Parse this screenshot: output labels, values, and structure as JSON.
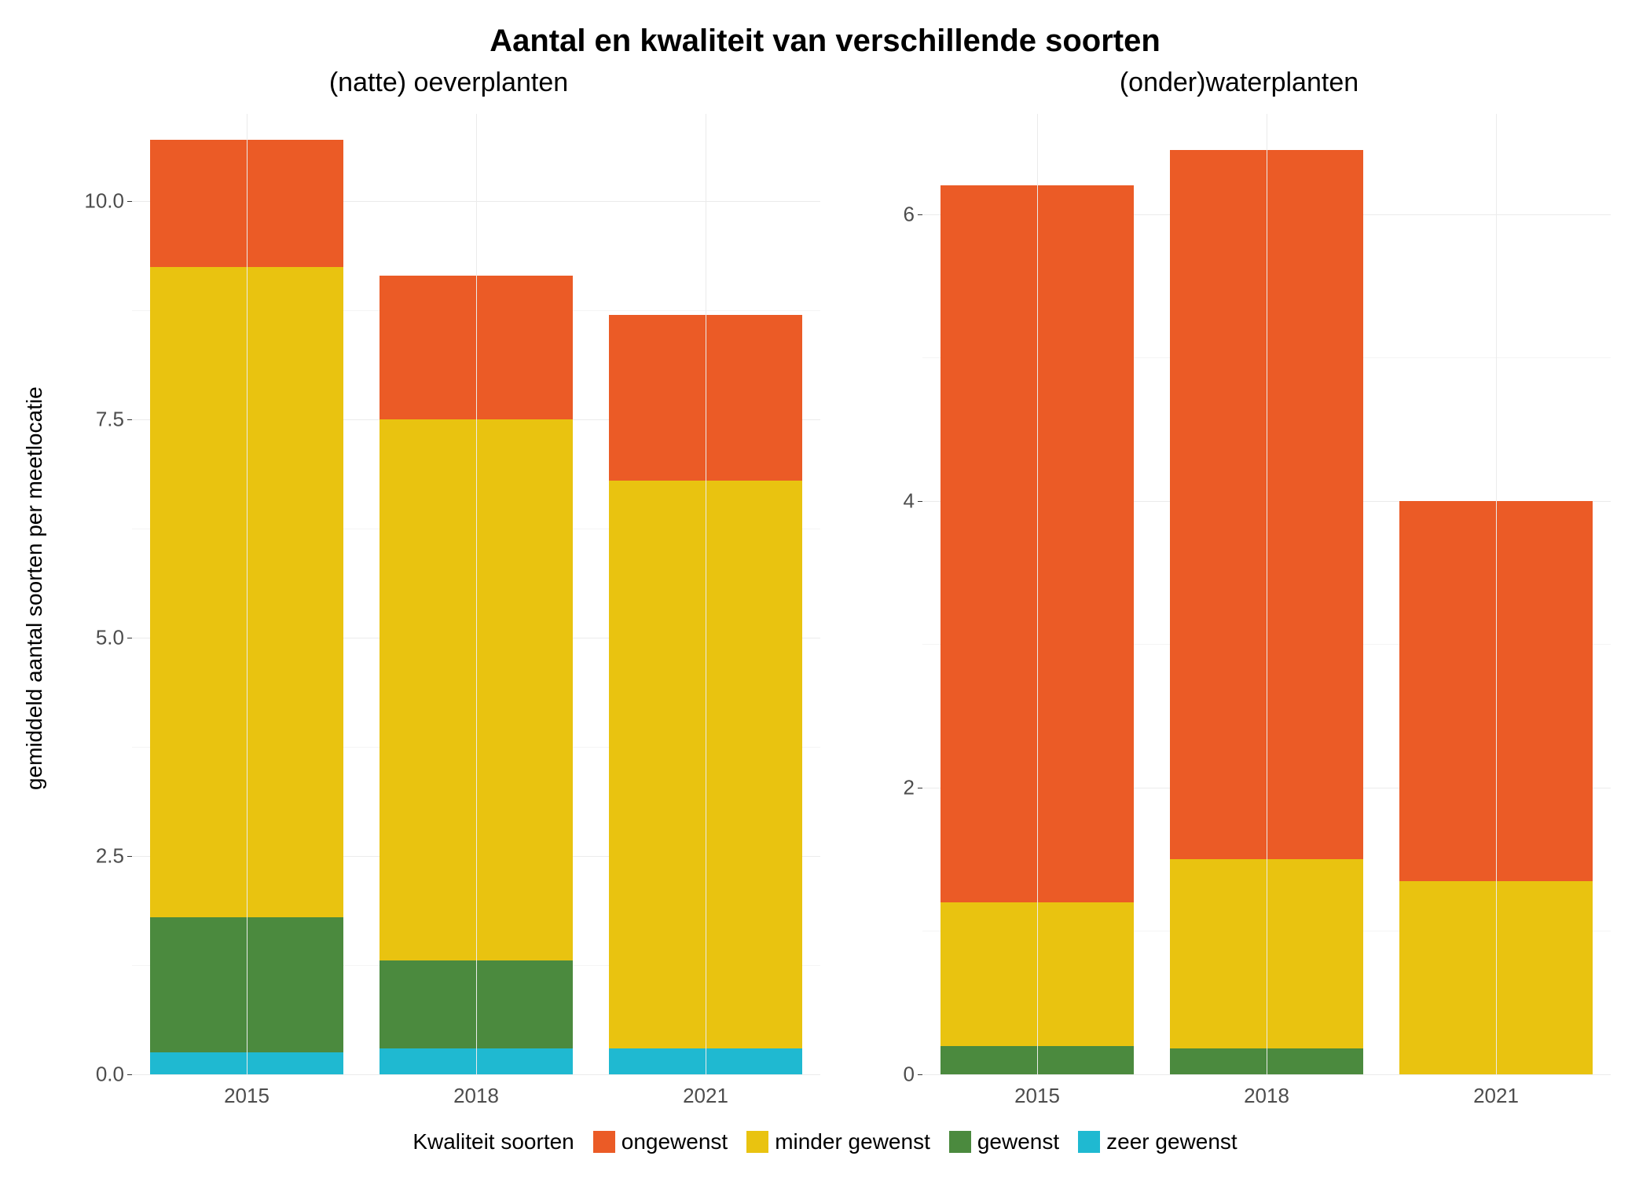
{
  "title": "Aantal en kwaliteit van verschillende soorten",
  "y_axis_label": "gemiddeld aantal soorten per meetlocatie",
  "colors": {
    "ongewenst": "#eb5b26",
    "minder_gewenst": "#e9c310",
    "gewenst": "#4b8a3e",
    "zeer_gewenst": "#1fb9d1",
    "grid": "#ebebeb",
    "background": "#ffffff",
    "text": "#4d4d4d"
  },
  "legend": {
    "title": "Kwaliteit soorten",
    "items": [
      {
        "key": "ongewenst",
        "label": "ongewenst"
      },
      {
        "key": "minder_gewenst",
        "label": "minder gewenst"
      },
      {
        "key": "gewenst",
        "label": "gewenst"
      },
      {
        "key": "zeer_gewenst",
        "label": "zeer gewenst"
      }
    ]
  },
  "panels": [
    {
      "title": "(natte) oeverplanten",
      "y_max": 11.0,
      "y_ticks": [
        0.0,
        2.5,
        5.0,
        7.5,
        10.0
      ],
      "y_tick_labels": [
        "0.0",
        "2.5",
        "5.0",
        "7.5",
        "10.0"
      ],
      "categories": [
        "2015",
        "2018",
        "2021"
      ],
      "stack_order": [
        "zeer_gewenst",
        "gewenst",
        "minder_gewenst",
        "ongewenst"
      ],
      "data": [
        {
          "zeer_gewenst": 0.25,
          "gewenst": 1.55,
          "minder_gewenst": 7.45,
          "ongewenst": 1.45
        },
        {
          "zeer_gewenst": 0.3,
          "gewenst": 1.0,
          "minder_gewenst": 6.2,
          "ongewenst": 1.65
        },
        {
          "zeer_gewenst": 0.3,
          "gewenst": 0.0,
          "minder_gewenst": 6.5,
          "ongewenst": 1.9
        }
      ]
    },
    {
      "title": "(onder)waterplanten",
      "y_max": 6.7,
      "y_ticks": [
        0,
        2,
        4,
        6
      ],
      "y_tick_labels": [
        "0",
        "2",
        "4",
        "6"
      ],
      "categories": [
        "2015",
        "2018",
        "2021"
      ],
      "stack_order": [
        "zeer_gewenst",
        "gewenst",
        "minder_gewenst",
        "ongewenst"
      ],
      "data": [
        {
          "zeer_gewenst": 0.0,
          "gewenst": 0.2,
          "minder_gewenst": 1.0,
          "ongewenst": 5.0
        },
        {
          "zeer_gewenst": 0.0,
          "gewenst": 0.18,
          "minder_gewenst": 1.32,
          "ongewenst": 4.95
        },
        {
          "zeer_gewenst": 0.0,
          "gewenst": 0.0,
          "minder_gewenst": 1.35,
          "ongewenst": 2.65
        }
      ]
    }
  ],
  "typography": {
    "title_fontsize": 40,
    "panel_title_fontsize": 34,
    "axis_label_fontsize": 28,
    "tick_fontsize": 26,
    "legend_fontsize": 28
  },
  "layout": {
    "bar_width_pct": 28,
    "aspect": "2100x1500"
  }
}
